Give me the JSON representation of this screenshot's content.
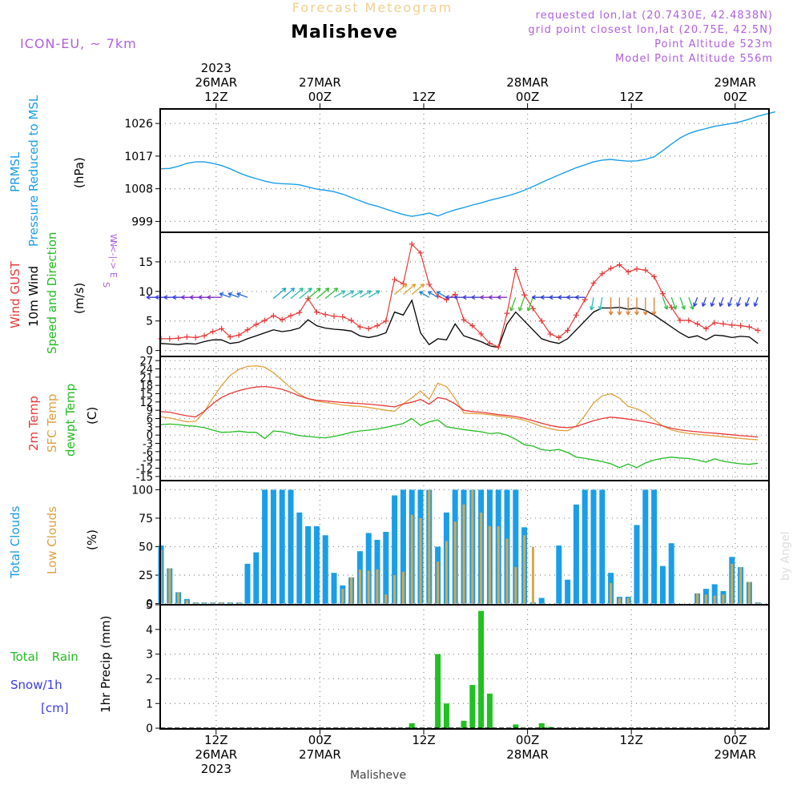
{
  "header": {
    "top_title": "Forecast Meteogram",
    "location": "Malisheve",
    "model": "ICON-EU, ~ 7km",
    "requested": "requested lon,lat (20.7430E, 42.4838N)",
    "grid": "grid point closest lon,lat (20.75E, 42.5N)",
    "point_alt": "Point Altitude 523m",
    "model_alt": "Model Point Altitude 556m",
    "footer_location": "Malisheve",
    "watermark": "by Angel"
  },
  "colors": {
    "pressure": "#1a9ee8",
    "gust": "#e83838",
    "wind": "#000000",
    "dir": "#22bb22",
    "temp2m": "#e83838",
    "sfc": "#e0a040",
    "dew": "#22bb22",
    "total_cloud": "#1a9ee8",
    "low_cloud": "#d4a84c",
    "rain": "#22c022",
    "snow": "#3c3ce8",
    "meta": "#b060e0",
    "title_top": "#f0d090"
  },
  "time_axis": {
    "ticks": [
      {
        "slot": 6,
        "top": [
          "2023",
          "26MAR",
          "12Z"
        ],
        "bottom": [
          "12Z",
          "26MAR",
          "2023"
        ]
      },
      {
        "slot": 18,
        "top": [
          "27MAR",
          "00Z"
        ],
        "bottom": [
          "00Z",
          "27MAR"
        ]
      },
      {
        "slot": 30,
        "top": [
          "12Z"
        ],
        "bottom": [
          "12Z"
        ]
      },
      {
        "slot": 42,
        "top": [
          "28MAR",
          "00Z"
        ],
        "bottom": [
          "00Z",
          "28MAR"
        ]
      },
      {
        "slot": 54,
        "top": [
          "12Z"
        ],
        "bottom": [
          "12Z"
        ]
      },
      {
        "slot": 66,
        "top": [
          "29MAR",
          "00Z"
        ],
        "bottom": [
          "00Z",
          "29MAR"
        ]
      }
    ]
  },
  "chart_data": [
    {
      "type": "line",
      "title": "Pressure Reduced to MSL",
      "ylabels": [
        "PRMSL",
        "Pressure Reduced to MSL"
      ],
      "unit": "(hPa)",
      "ylim": [
        996,
        1030
      ],
      "yticks": [
        999,
        1008,
        1017,
        1026
      ],
      "series": [
        {
          "name": "PRMSL",
          "values": [
            1013.5,
            1013.6,
            1014.2,
            1015.0,
            1015.4,
            1015.4,
            1015.0,
            1014.4,
            1013.5,
            1012.4,
            1011.5,
            1010.8,
            1010.1,
            1009.6,
            1009.4,
            1009.3,
            1009.1,
            1008.5,
            1007.9,
            1007.6,
            1007.2,
            1006.5,
            1005.6,
            1004.7,
            1003.8,
            1003.2,
            1002.4,
            1001.6,
            1000.9,
            1000.4,
            1000.8,
            1001.3,
            1000.5,
            1001.4,
            1002.2,
            1002.8,
            1003.5,
            1004.1,
            1004.8,
            1005.4,
            1006.0,
            1006.7,
            1007.6,
            1008.6,
            1009.7,
            1010.8,
            1011.8,
            1012.8,
            1013.8,
            1014.6,
            1015.4,
            1015.9,
            1016.1,
            1015.8,
            1015.6,
            1015.7,
            1016.1,
            1016.8,
            1018.5,
            1020.3,
            1022.0,
            1023.2,
            1024.0,
            1024.6,
            1025.2,
            1025.6,
            1026.0,
            1026.5,
            1027.2,
            1028.0,
            1028.6,
            1029.2
          ]
        }
      ]
    },
    {
      "type": "line",
      "title": "Wind GUST / 10m Wind Speed and Direction",
      "ylabels": [
        "Wind GUST",
        "10m Wind",
        "Speed and Direction"
      ],
      "unit": "(m/s)",
      "ylim": [
        0,
        20
      ],
      "yticks": [
        0,
        5,
        10,
        15
      ],
      "compass": [
        "N",
        "W <-|-> E",
        "S"
      ],
      "series": [
        {
          "name": "Wind GUST",
          "values": [
            2.0,
            2.0,
            2.1,
            2.3,
            2.2,
            2.5,
            3.2,
            3.7,
            2.3,
            2.6,
            3.5,
            4.4,
            5.1,
            5.9,
            5.2,
            5.9,
            6.4,
            8.8,
            6.5,
            6.1,
            5.8,
            5.7,
            5.1,
            4.0,
            3.7,
            4.2,
            5.0,
            12.0,
            11.3,
            18.0,
            16.5,
            11.2,
            9.2,
            8.6,
            9.5,
            5.2,
            4.2,
            2.8,
            1.2,
            0.6,
            6.3,
            13.7,
            9.4,
            7.1,
            5.0,
            2.8,
            2.2,
            3.4,
            6.0,
            8.6,
            11.4,
            13.0,
            13.9,
            14.5,
            13.3,
            13.8,
            13.6,
            12.5,
            9.6,
            7.3,
            5.1,
            5.1,
            4.5,
            3.7,
            4.7,
            4.5,
            4.3,
            4.2,
            4.0,
            3.4
          ]
        },
        {
          "name": "10m Wind",
          "values": [
            1.2,
            1.1,
            1.0,
            1.2,
            1.1,
            1.5,
            1.8,
            1.8,
            1.2,
            1.4,
            2.0,
            2.5,
            3.0,
            3.5,
            3.2,
            3.4,
            3.8,
            5.2,
            4.2,
            3.8,
            3.6,
            3.5,
            3.3,
            2.5,
            2.2,
            2.5,
            3.0,
            6.5,
            6.0,
            8.5,
            3.0,
            1.0,
            2.0,
            1.8,
            4.5,
            2.5,
            2.0,
            1.5,
            0.8,
            0.5,
            4.5,
            6.5,
            5.0,
            3.5,
            2.0,
            1.5,
            1.2,
            2.0,
            3.5,
            5.0,
            6.5,
            7.2,
            7.2,
            7.3,
            7.0,
            7.2,
            6.8,
            6.0,
            5.0,
            4.0,
            3.0,
            2.2,
            2.5,
            1.8,
            2.6,
            2.5,
            2.2,
            2.4,
            2.3,
            1.2
          ]
        }
      ],
      "direction_arrows": "blue/purple westward arrows at ~9 m/s on 26MAR, green/cyan north-east arrows 26MAR evening, orange south-pointing arrows 28MAR afternoon"
    },
    {
      "type": "line",
      "title": "2m Temp / SFC Temp / dewpt Temp",
      "ylabels": [
        "2m Temp",
        "SFC Temp",
        "dewpt Temp"
      ],
      "unit": "(C)",
      "ylim": [
        -16,
        28
      ],
      "yticks": [
        -15,
        -12,
        -9,
        -6,
        -3,
        0,
        3,
        6,
        9,
        12,
        15,
        18,
        21,
        24,
        27
      ],
      "series": [
        {
          "name": "2m Temp",
          "values": [
            8.5,
            8.3,
            7.6,
            7.0,
            6.6,
            8.6,
            11.4,
            13.6,
            15.1,
            16.1,
            16.9,
            17.4,
            17.6,
            17.2,
            16.6,
            15.5,
            14.2,
            13.2,
            12.6,
            12.4,
            12.1,
            11.8,
            11.6,
            11.4,
            11.2,
            10.9,
            10.6,
            10.2,
            11.3,
            11.9,
            12.9,
            11.2,
            13.6,
            13.0,
            11.3,
            9.0,
            8.5,
            8.3,
            7.9,
            7.4,
            7.1,
            6.7,
            6.1,
            5.2,
            4.3,
            3.5,
            2.9,
            2.7,
            3.1,
            4.2,
            5.2,
            6.0,
            6.5,
            6.2,
            5.8,
            5.3,
            4.8,
            4.2,
            3.3,
            2.5,
            1.9,
            1.5,
            1.2,
            0.9,
            0.7,
            0.4,
            0.1,
            -0.2,
            -0.4,
            -0.7
          ]
        },
        {
          "name": "SFC Temp",
          "values": [
            6.6,
            6.2,
            5.5,
            4.8,
            5.0,
            8.4,
            13.5,
            18.0,
            21.6,
            23.8,
            24.9,
            25.1,
            24.6,
            22.6,
            19.9,
            17.1,
            14.8,
            13.2,
            12.3,
            11.8,
            11.4,
            10.9,
            10.6,
            10.4,
            10.0,
            9.5,
            9.0,
            8.6,
            11.3,
            13.5,
            16.0,
            13.0,
            18.8,
            17.6,
            13.2,
            8.0,
            7.8,
            7.7,
            7.4,
            6.9,
            6.5,
            6.1,
            5.4,
            4.3,
            3.1,
            2.3,
            1.7,
            1.6,
            3.3,
            7.1,
            11.6,
            14.2,
            15.0,
            13.4,
            10.4,
            9.5,
            8.0,
            5.6,
            3.3,
            1.9,
            1.1,
            0.6,
            0.3,
            0.0,
            -0.3,
            -0.6,
            -0.9,
            -1.2,
            -1.5,
            -1.7
          ]
        },
        {
          "name": "dewpt Temp",
          "values": [
            3.8,
            4.0,
            3.8,
            3.4,
            3.2,
            2.7,
            1.8,
            1.0,
            1.1,
            1.4,
            1.0,
            1.0,
            -1.3,
            1.5,
            1.2,
            0.5,
            -0.2,
            -0.5,
            -0.8,
            -1.0,
            -0.5,
            0.2,
            1.0,
            1.5,
            1.8,
            2.2,
            2.8,
            3.5,
            4.2,
            6.0,
            3.5,
            4.8,
            5.5,
            3.0,
            2.5,
            2.0,
            1.6,
            1.2,
            0.5,
            0.8,
            0.0,
            -1.5,
            -3.5,
            -4.0,
            -5.3,
            -5.6,
            -5.2,
            -6.3,
            -8.0,
            -8.4,
            -9.0,
            -9.6,
            -10.4,
            -11.8,
            -10.5,
            -11.8,
            -10.1,
            -9.0,
            -8.4,
            -8.0,
            -8.3,
            -8.5,
            -9.0,
            -9.8,
            -8.6,
            -9.5,
            -10.0,
            -10.4,
            -10.6,
            -10.2
          ]
        }
      ]
    },
    {
      "type": "bar",
      "title": "Total Clouds / Low Clouds",
      "ylabels": [
        "Total Clouds",
        "Low Clouds"
      ],
      "unit": "(%)",
      "ylim": [
        0,
        100
      ],
      "yticks": [
        0,
        25,
        50,
        75,
        100
      ],
      "series": [
        {
          "name": "Total Clouds",
          "values": [
            51,
            31,
            10,
            4,
            1,
            1,
            1,
            1,
            1,
            1,
            35,
            45,
            100,
            100,
            100,
            100,
            80,
            68,
            68,
            60,
            27,
            16,
            23,
            46,
            62,
            56,
            63,
            95,
            100,
            100,
            100,
            100,
            50,
            80,
            100,
            100,
            100,
            100,
            100,
            100,
            100,
            100,
            67,
            1,
            5,
            0,
            51,
            21,
            87,
            100,
            100,
            100,
            27,
            6,
            6,
            69,
            100,
            100,
            33,
            53,
            0,
            0,
            9,
            13,
            17,
            11,
            41,
            32,
            19,
            1
          ]
        },
        {
          "name": "Low Clouds",
          "values": [
            47,
            31,
            10,
            3,
            1,
            1,
            1,
            1,
            1,
            1,
            0,
            0,
            0,
            0,
            0,
            0,
            0,
            0,
            0,
            0,
            0,
            13,
            23,
            30,
            29,
            30,
            8,
            25,
            28,
            78,
            75,
            100,
            37,
            55,
            72,
            87,
            100,
            80,
            68,
            68,
            57,
            32,
            60,
            50,
            0,
            0,
            0,
            0,
            0,
            0,
            0,
            0,
            18,
            5,
            5,
            0,
            0,
            0,
            0,
            0,
            0,
            0,
            9,
            8,
            7,
            8,
            35,
            32,
            19,
            1
          ]
        }
      ]
    },
    {
      "type": "bar",
      "title": "1hr Precip (mm)",
      "ylabels": [
        "Total Rain",
        "Snow/1h",
        "[cm]"
      ],
      "unit": "1hr Precip (mm)",
      "ylim": [
        0,
        5
      ],
      "yticks": [
        0,
        1,
        2,
        3,
        4,
        5
      ],
      "series": [
        {
          "name": "Total Rain",
          "values": [
            0,
            0,
            0,
            0,
            0,
            0,
            0,
            0,
            0,
            0,
            0,
            0,
            0,
            0,
            0,
            0,
            0,
            0,
            0,
            0,
            0,
            0,
            0,
            0,
            0,
            0,
            0,
            0,
            0,
            0,
            0,
            0,
            3.0,
            1.0,
            0,
            0,
            0,
            0,
            0,
            0,
            0,
            0,
            0,
            0,
            0,
            0,
            0,
            0,
            0,
            0,
            0,
            0,
            0,
            0,
            0,
            0,
            0,
            0,
            0,
            0,
            0,
            0,
            0,
            0,
            0,
            0,
            0,
            0,
            0,
            0
          ]
        },
        {
          "name": "Snow/1h",
          "values": [
            0,
            0,
            0,
            0,
            0,
            0,
            0,
            0,
            0,
            0,
            0,
            0,
            0,
            0,
            0,
            0,
            0,
            0,
            0,
            0,
            0,
            0,
            0,
            0,
            0,
            0,
            0,
            0,
            0,
            0,
            0,
            0,
            0,
            0,
            0,
            0,
            0,
            0,
            0,
            0,
            0,
            0,
            0,
            0,
            0,
            0,
            0,
            0,
            0,
            0,
            0,
            0,
            0,
            0,
            0,
            0,
            0,
            0,
            0,
            0,
            0,
            0,
            0,
            0,
            0,
            0,
            0,
            0,
            0,
            0,
            0,
            0
          ]
        }
      ],
      "rain_by_slot": {
        "29": 0.2,
        "32": 3.0,
        "33": 1.0,
        "35": 0.3,
        "36": 1.75,
        "37": 4.75,
        "38": 1.4,
        "41": 0.15,
        "44": 0.2,
        "45": 0.05
      }
    }
  ]
}
